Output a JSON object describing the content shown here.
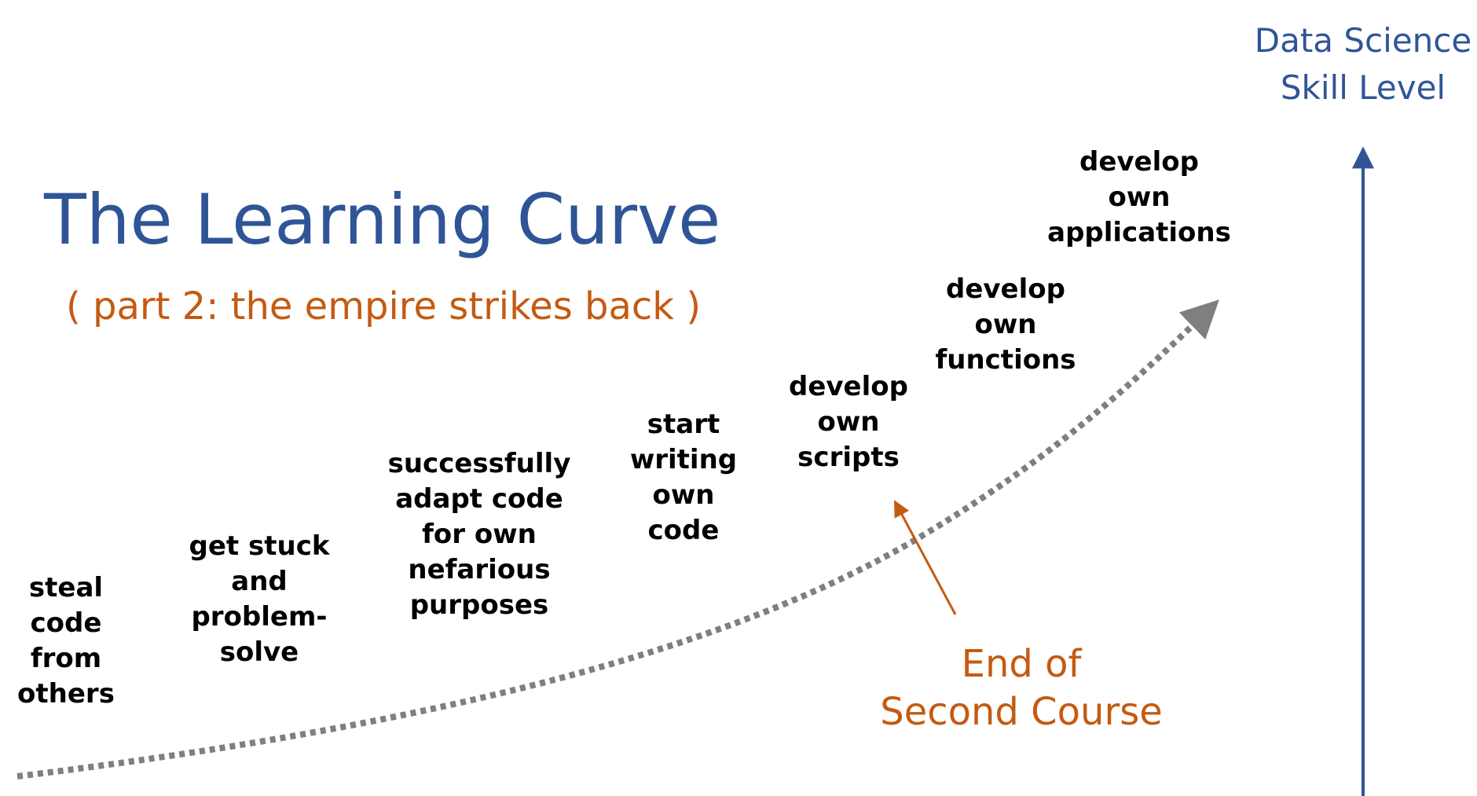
{
  "title": "The Learning Curve",
  "subtitle": "( part 2: the empire strikes back )",
  "axis_label": [
    "Data Science",
    "Skill Level"
  ],
  "stages": [
    {
      "lines": [
        "steal",
        "code",
        "from",
        "others"
      ]
    },
    {
      "lines": [
        "get stuck",
        "and",
        "problem-",
        "solve"
      ]
    },
    {
      "lines": [
        "successfully",
        "adapt code",
        "for own",
        "nefarious",
        "purposes"
      ]
    },
    {
      "lines": [
        "start",
        "writing",
        "own",
        "code"
      ]
    },
    {
      "lines": [
        "develop",
        "own",
        "scripts"
      ]
    },
    {
      "lines": [
        "develop",
        "own",
        "functions"
      ]
    },
    {
      "lines": [
        "develop",
        "own",
        "applications"
      ]
    }
  ],
  "annotation": [
    "End of",
    "Second Course"
  ],
  "colors": {
    "title": "#2f5597",
    "accent": "#c55a11",
    "curve": "#7f7f7f",
    "axis": "#2f5597",
    "text": "#000000"
  }
}
